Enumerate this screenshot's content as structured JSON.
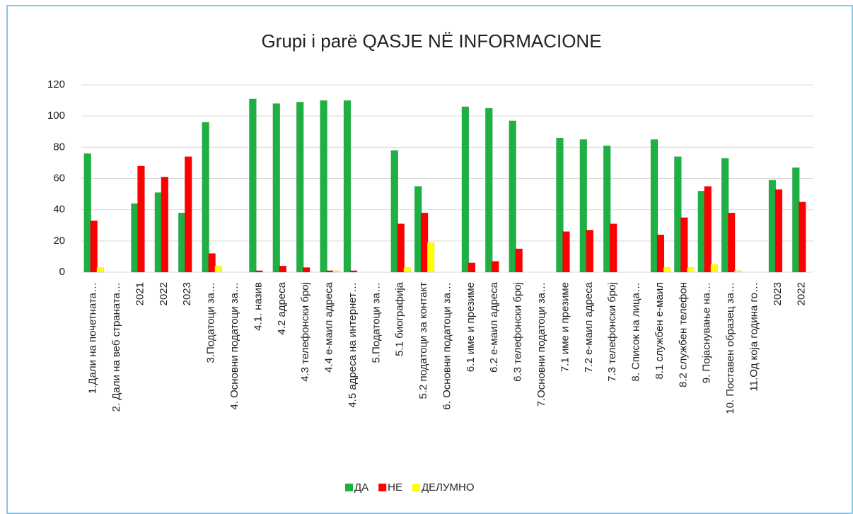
{
  "chart_data": {
    "type": "bar",
    "title": "Grupi i parë QASJE NË INFORMACIONE",
    "categories": [
      "1.Дали на почетната…",
      "2. Дали на веб страната…",
      "2021",
      "2022",
      "2023",
      "3.Податоци за…",
      "4. Основни податоци за…",
      "4.1. назив",
      "4.2  адреса",
      "4.3  телефонски број",
      "4.4  е-маил адреса",
      "4.5 адреса на интернет…",
      "5.Податоци за…",
      "5.1 биографија",
      "5.2 податоци за контакт",
      "6. Основни податоци за…",
      "6.1 име и презиме",
      "6.2 е-маил адреса",
      "6.3 телефонски број",
      "7.Основни податоци за…",
      "7.1  име и презиме",
      "7.2  е-маил адреса",
      "7.3  телефонски број",
      "8. Список на лица…",
      "8.1  службен е-маил",
      "8.2  службен телефон",
      "9. Појаснување на…",
      "10. Поставен образец за…",
      "11.Од која година го…",
      "2023",
      "2022"
    ],
    "series": [
      {
        "name": "ДА",
        "color": "#1fb044",
        "values": [
          76,
          null,
          44,
          51,
          38,
          96,
          null,
          111,
          108,
          109,
          110,
          110,
          null,
          78,
          55,
          null,
          106,
          105,
          97,
          null,
          86,
          85,
          81,
          null,
          85,
          74,
          52,
          73,
          null,
          59,
          67
        ]
      },
      {
        "name": "НЕ",
        "color": "#ff0000",
        "values": [
          33,
          null,
          68,
          61,
          74,
          12,
          null,
          1,
          4,
          3,
          1,
          1,
          null,
          31,
          38,
          null,
          6,
          7,
          15,
          null,
          26,
          27,
          31,
          null,
          24,
          35,
          55,
          38,
          null,
          53,
          45
        ]
      },
      {
        "name": "ДЕЛУМНО",
        "color": "#ffff00",
        "values": [
          3,
          null,
          0,
          0,
          0,
          4,
          null,
          0,
          0,
          0,
          1,
          0,
          null,
          3,
          19,
          null,
          0,
          0,
          0,
          null,
          0,
          0,
          0,
          null,
          3,
          3,
          5,
          1,
          null,
          0,
          0
        ]
      }
    ],
    "ylim": [
      0,
      120
    ],
    "yticks": [
      0,
      20,
      40,
      60,
      80,
      100,
      120
    ],
    "grid": true,
    "legend": "bottom"
  }
}
